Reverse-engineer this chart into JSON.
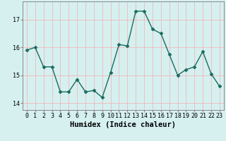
{
  "x": [
    0,
    1,
    2,
    3,
    4,
    5,
    6,
    7,
    8,
    9,
    10,
    11,
    12,
    13,
    14,
    15,
    16,
    17,
    18,
    19,
    20,
    21,
    22,
    23
  ],
  "y": [
    15.9,
    16.0,
    15.3,
    15.3,
    14.4,
    14.4,
    14.85,
    14.4,
    14.45,
    14.2,
    15.1,
    16.1,
    16.05,
    17.3,
    17.3,
    16.65,
    16.5,
    15.75,
    15.0,
    15.2,
    15.3,
    15.85,
    15.05,
    14.6
  ],
  "line_color": "#1a6b5e",
  "marker": "D",
  "marker_size": 2.5,
  "bg_color": "#d6f0f0",
  "grid_color": "#f0b8b8",
  "xlabel": "Humidex (Indice chaleur)",
  "ylim": [
    13.75,
    17.65
  ],
  "xlim": [
    -0.5,
    23.5
  ],
  "yticks": [
    14,
    15,
    16,
    17
  ],
  "xticks": [
    0,
    1,
    2,
    3,
    4,
    5,
    6,
    7,
    8,
    9,
    10,
    11,
    12,
    13,
    14,
    15,
    16,
    17,
    18,
    19,
    20,
    21,
    22,
    23
  ],
  "xtick_labels": [
    "0",
    "1",
    "2",
    "3",
    "4",
    "5",
    "6",
    "7",
    "8",
    "9",
    "10",
    "11",
    "12",
    "13",
    "14",
    "15",
    "16",
    "17",
    "18",
    "19",
    "20",
    "21",
    "22",
    "23"
  ],
  "tick_fontsize": 6,
  "xlabel_fontsize": 7.5,
  "line_width": 1.0,
  "spine_color": "#888888"
}
